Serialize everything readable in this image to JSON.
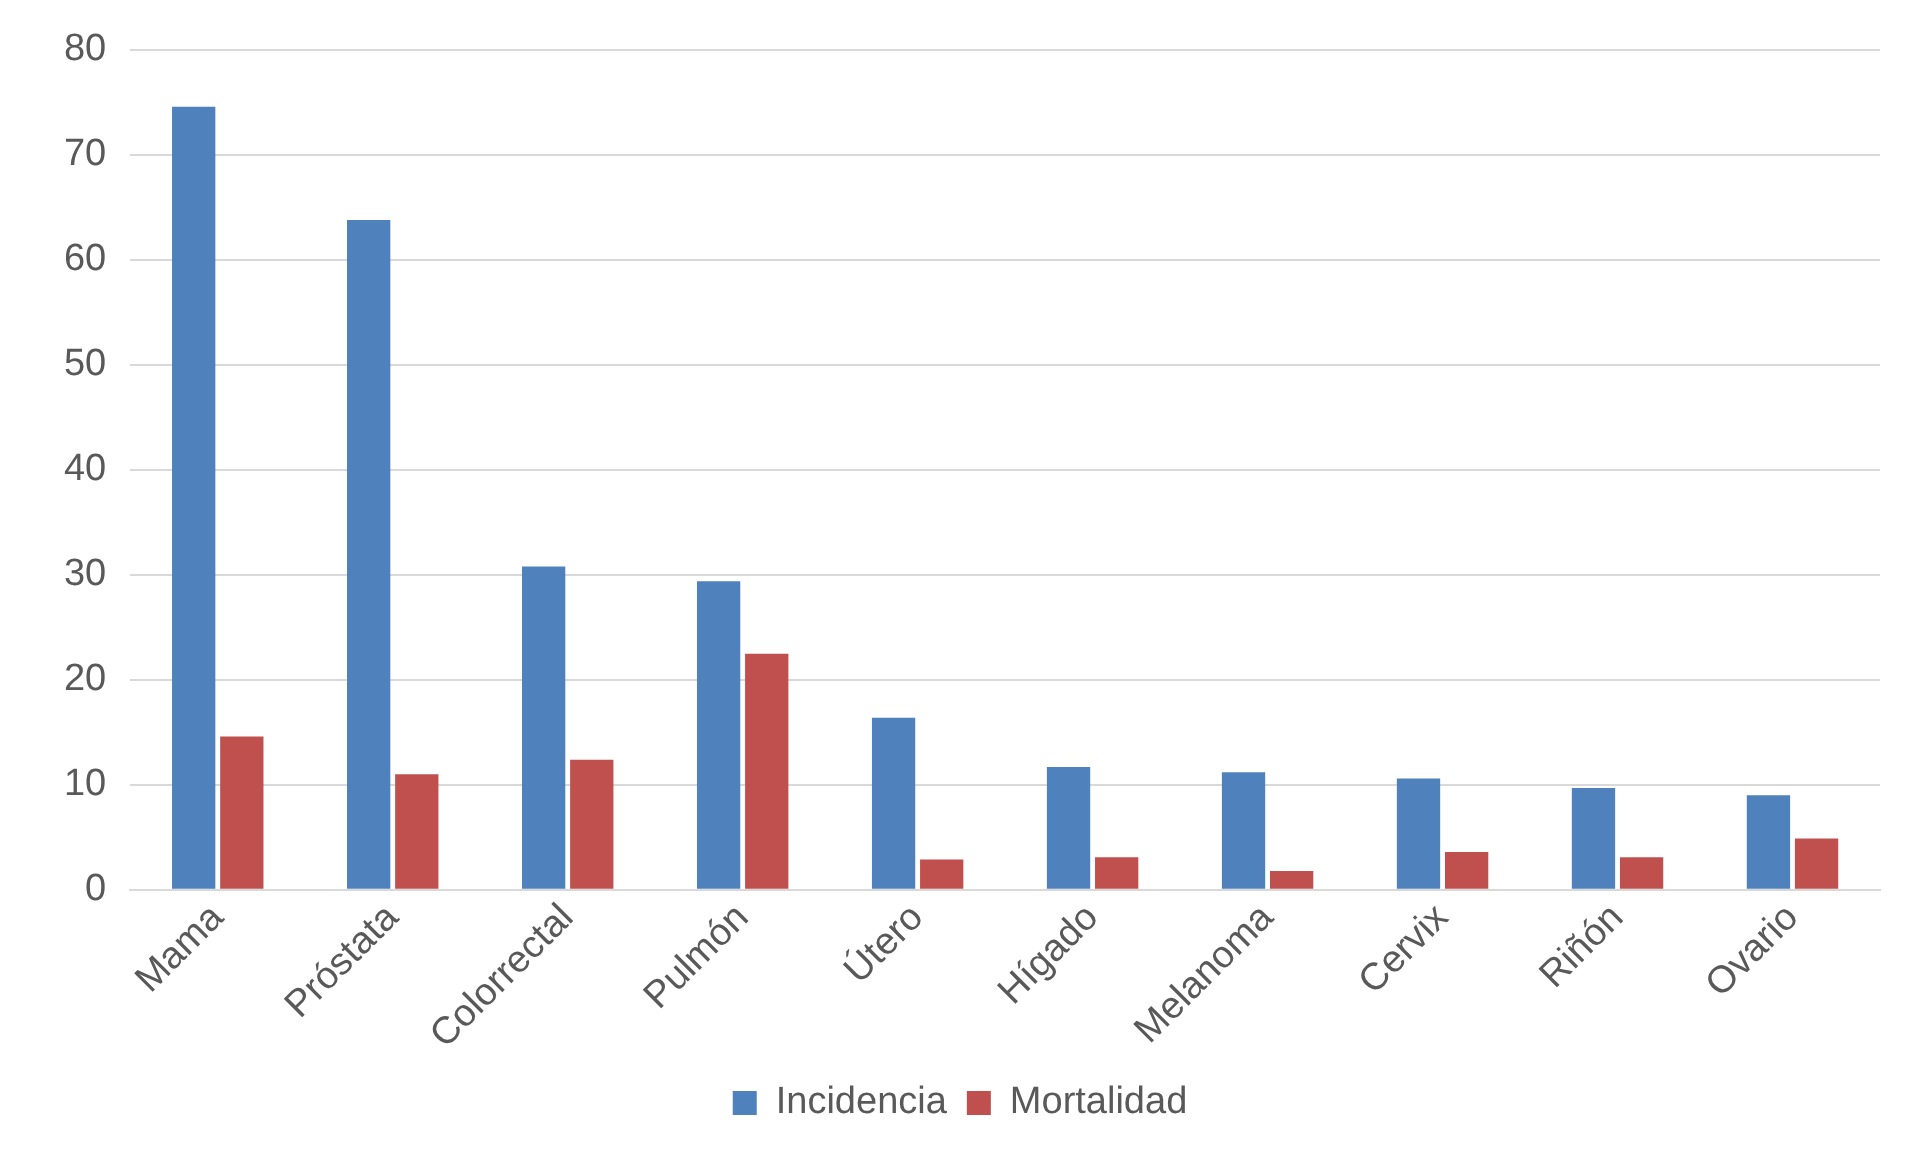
{
  "chart_data": {
    "type": "bar",
    "categories": [
      "Mama",
      "Próstata",
      "Colorrectal",
      "Pulmón",
      "Útero",
      "Hígado",
      "Melanoma",
      "Cervix",
      "Riñón",
      "Ovario"
    ],
    "series": [
      {
        "name": "Incidencia",
        "color": "#4f81bd",
        "values": [
          74.6,
          63.8,
          30.8,
          29.4,
          16.4,
          11.7,
          11.2,
          10.6,
          9.7,
          9.0
        ]
      },
      {
        "name": "Mortalidad",
        "color": "#c0504d",
        "values": [
          14.6,
          11.0,
          12.4,
          22.5,
          2.9,
          3.1,
          1.8,
          3.6,
          3.1,
          4.9
        ]
      }
    ],
    "ylim": [
      0,
      80
    ],
    "yticks": [
      0,
      10,
      20,
      30,
      40,
      50,
      60,
      70,
      80
    ],
    "grid": "y",
    "legend": "bottom"
  }
}
